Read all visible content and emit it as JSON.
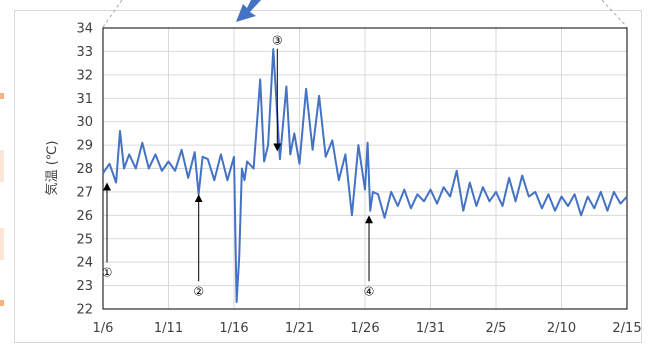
{
  "chart_data": {
    "type": "line",
    "title": "",
    "xlabel": "",
    "ylabel": "気温 (℃)",
    "ylim": [
      22,
      34
    ],
    "yticks": [
      22,
      23,
      24,
      25,
      26,
      27,
      28,
      29,
      30,
      31,
      32,
      33,
      34
    ],
    "xlim": [
      "1/6",
      "2/15"
    ],
    "xticks": [
      "1/6",
      "1/11",
      "1/16",
      "1/21",
      "1/26",
      "1/31",
      "2/5",
      "2/10",
      "2/15"
    ],
    "grid": true,
    "legend": "none",
    "series": [
      {
        "color": "#4472c4",
        "x": [
          "1/6",
          "1/6.5",
          "1/7",
          "1/7.3",
          "1/7.6",
          "1/8",
          "1/8.5",
          "1/9",
          "1/9.5",
          "1/10",
          "1/10.5",
          "1/11",
          "1/11.5",
          "1/12",
          "1/12.5",
          "1/13",
          "1/13.3",
          "1/13.6",
          "1/14",
          "1/14.5",
          "1/15",
          "1/15.5",
          "1/16",
          "1/16.2",
          "1/16.4",
          "1/16.6",
          "1/16.8",
          "1/17",
          "1/17.5",
          "1/18",
          "1/18.3",
          "1/18.6",
          "1/19",
          "1/19.5",
          "1/20",
          "1/20.3",
          "1/20.6",
          "1/21",
          "1/21.5",
          "1/22",
          "1/22.5",
          "1/23",
          "1/23.5",
          "1/24",
          "1/24.5",
          "1/25",
          "1/25.5",
          "1/26",
          "1/26.2",
          "1/26.4",
          "1/26.6",
          "1/27",
          "1/27.5",
          "1/28",
          "1/28.5",
          "1/29",
          "1/29.5",
          "1/30",
          "1/30.5",
          "1/31",
          "1/31.5",
          "2/1",
          "2/1.5",
          "2/2",
          "2/2.5",
          "2/3",
          "2/3.5",
          "2/4",
          "2/4.5",
          "2/5",
          "2/5.5",
          "2/6",
          "2/6.5",
          "2/7",
          "2/7.5",
          "2/8",
          "2/8.5",
          "2/9",
          "2/9.5",
          "2/10",
          "2/10.5",
          "2/11",
          "2/11.5",
          "2/12",
          "2/12.5",
          "2/13",
          "2/13.5",
          "2/14",
          "2/14.5",
          "2/15"
        ],
        "y": [
          27.8,
          28.2,
          27.4,
          29.6,
          28.0,
          28.6,
          28.0,
          29.1,
          28.0,
          28.6,
          27.9,
          28.3,
          27.9,
          28.8,
          27.6,
          28.7,
          26.9,
          28.5,
          28.4,
          27.5,
          28.6,
          27.5,
          28.5,
          22.3,
          24.2,
          28.0,
          27.5,
          28.3,
          28.0,
          31.8,
          28.3,
          29.0,
          33.1,
          28.4,
          31.5,
          28.6,
          29.5,
          28.2,
          31.4,
          28.8,
          31.1,
          28.5,
          29.2,
          27.5,
          28.6,
          26.0,
          29.0,
          27.1,
          29.1,
          26.2,
          27.0,
          26.9,
          25.9,
          27.0,
          26.4,
          27.1,
          26.3,
          26.9,
          26.6,
          27.1,
          26.5,
          27.2,
          26.8,
          27.9,
          26.2,
          27.4,
          26.4,
          27.2,
          26.6,
          27.0,
          26.4,
          27.6,
          26.6,
          27.7,
          26.8,
          27.0,
          26.3,
          26.9,
          26.2,
          26.8,
          26.4,
          26.9,
          26.0,
          26.8,
          26.3,
          27.0,
          26.2,
          27.0,
          26.5,
          26.8
        ]
      }
    ],
    "annotations": [
      {
        "label": "①",
        "x": "1/6",
        "y": 27.7,
        "label_y": 23.6
      },
      {
        "label": "②",
        "x": "1/13",
        "y": 27.2,
        "label_y": 22.8
      },
      {
        "label": "③",
        "x": "1/19",
        "y": 28.6,
        "label_y": 33.5
      },
      {
        "label": "④",
        "x": "1/26",
        "y": 26.3,
        "label_y": 22.8
      }
    ]
  }
}
